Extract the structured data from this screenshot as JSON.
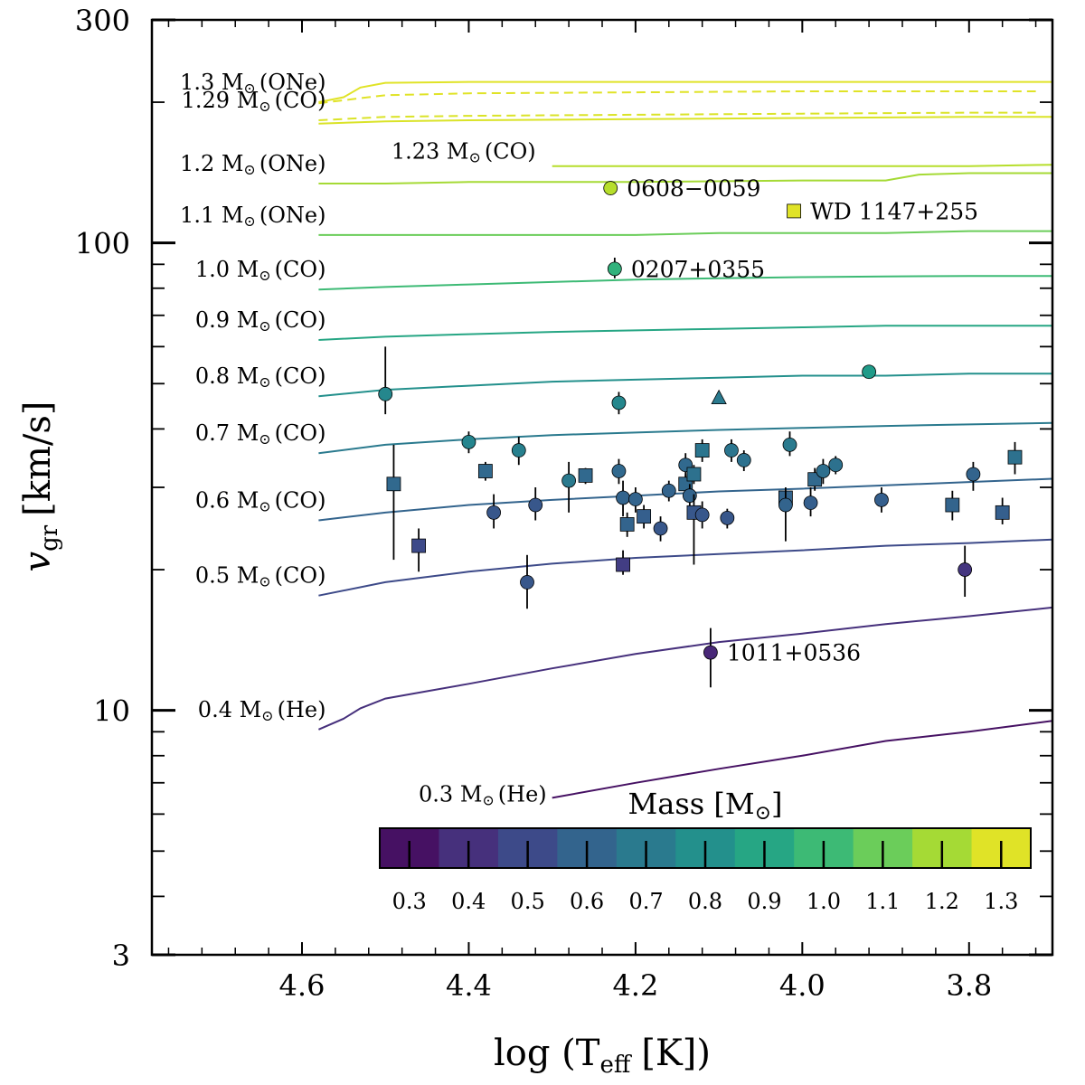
{
  "chart_data": {
    "type": "scatter",
    "xlabel": "log (T",
    "xlabel_sub": "eff",
    "xlabel_unit": "[K])",
    "ylabel": "v",
    "ylabel_sub": "gr",
    "ylabel_unit": "[km/s]",
    "xlim": [
      4.78,
      3.7
    ],
    "ylim": [
      3,
      300
    ],
    "yscale": "log",
    "x_reversed": true,
    "xticks": [
      4.6,
      4.4,
      4.2,
      4.0,
      3.8
    ],
    "xtick_labels": [
      "4.6",
      "4.4",
      "4.2",
      "4.0",
      "3.8"
    ],
    "yticks": [
      3,
      10,
      100,
      300
    ],
    "ytick_labels": [
      "3",
      "10",
      "100",
      "300"
    ],
    "grid": false,
    "colorbar": {
      "label": "Mass",
      "label_unit": "[M",
      "label_close": "]",
      "range": [
        0.25,
        1.35
      ],
      "ticks": [
        0.3,
        0.4,
        0.5,
        0.6,
        0.7,
        0.8,
        0.9,
        1.0,
        1.1,
        1.2,
        1.3
      ],
      "tick_labels": [
        "0.3",
        "0.4",
        "0.5",
        "0.6",
        "0.7",
        "0.8",
        "0.9",
        "1.0",
        "1.1",
        "1.2",
        "1.3"
      ]
    },
    "tracks": [
      {
        "mass": 1.3,
        "label": "1.3 M",
        "core": "(ONe)",
        "style": "solid",
        "x": [
          4.58,
          4.55,
          4.53,
          4.5,
          4.4,
          4.2,
          4.0,
          3.8,
          3.7
        ],
        "y": [
          200,
          205,
          215,
          220,
          221,
          221,
          221,
          221,
          221
        ]
      },
      {
        "mass": 1.3,
        "label": "",
        "core": "",
        "style": "dashed",
        "x": [
          4.58,
          4.53,
          4.5,
          4.4,
          4.2,
          4.0,
          3.8,
          3.72
        ],
        "y": [
          199,
          204,
          207,
          209,
          210,
          211,
          211,
          211
        ]
      },
      {
        "mass": 1.29,
        "label": "1.29 M",
        "core": "(CO)",
        "style": "dashed",
        "x": [
          4.58,
          4.5,
          4.4,
          4.2,
          4.0,
          3.8,
          3.72
        ],
        "y": [
          183,
          186,
          187,
          188,
          189,
          190,
          190
        ]
      },
      {
        "mass": 1.29,
        "label": "",
        "core": "",
        "style": "solid",
        "x": [
          4.58,
          4.5,
          4.4,
          4.2,
          4.0,
          3.8,
          3.7
        ],
        "y": [
          180,
          182,
          183,
          184,
          185,
          186,
          186
        ]
      },
      {
        "mass": 1.23,
        "label": "1.23 M",
        "core": "(CO)",
        "style": "solid",
        "x": [
          4.3,
          4.2,
          4.0,
          3.8,
          3.7
        ],
        "y": [
          146,
          146,
          146,
          146,
          147
        ]
      },
      {
        "mass": 1.2,
        "label": "1.2 M",
        "core": "(ONe)",
        "style": "solid",
        "x": [
          4.58,
          4.5,
          4.4,
          4.2,
          4.0,
          3.9,
          3.86,
          3.8,
          3.7
        ],
        "y": [
          134,
          134,
          135,
          135,
          136,
          136,
          140,
          141,
          141
        ]
      },
      {
        "mass": 1.1,
        "label": "1.1 M",
        "core": "(ONe)",
        "style": "solid",
        "x": [
          4.58,
          4.4,
          4.3,
          4.2,
          4.1,
          4.0,
          3.9,
          3.8,
          3.7
        ],
        "y": [
          104,
          104,
          104,
          104,
          105,
          105,
          105,
          106,
          106
        ]
      },
      {
        "mass": 1.0,
        "label": "1.0 M",
        "core": "(CO)",
        "style": "solid",
        "x": [
          4.58,
          4.5,
          4.4,
          4.3,
          4.2,
          4.1,
          4.0,
          3.9,
          3.8,
          3.7
        ],
        "y": [
          79.5,
          80.5,
          81.5,
          82.5,
          83.5,
          84,
          84.5,
          84.8,
          85,
          85
        ]
      },
      {
        "mass": 0.9,
        "label": "0.9 M",
        "core": "(CO)",
        "style": "solid",
        "x": [
          4.58,
          4.5,
          4.4,
          4.3,
          4.2,
          4.1,
          4.0,
          3.9,
          3.8,
          3.7
        ],
        "y": [
          62,
          63,
          63.8,
          64.5,
          65,
          65.5,
          66,
          66.5,
          66.5,
          66.5
        ]
      },
      {
        "mass": 0.8,
        "label": "0.8 M",
        "core": "(CO)",
        "style": "solid",
        "x": [
          4.58,
          4.5,
          4.4,
          4.3,
          4.2,
          4.1,
          4.0,
          3.9,
          3.8,
          3.7
        ],
        "y": [
          47,
          48.5,
          49.5,
          50.5,
          51,
          51.5,
          52,
          52,
          52.5,
          52.5
        ]
      },
      {
        "mass": 0.7,
        "label": "0.7 M",
        "core": "(CO)",
        "style": "solid",
        "x": [
          4.58,
          4.5,
          4.4,
          4.3,
          4.2,
          4.1,
          4.0,
          3.9,
          3.8,
          3.7
        ],
        "y": [
          35.5,
          37,
          38,
          38.8,
          39.3,
          39.8,
          40.2,
          40.6,
          40.9,
          41.2
        ]
      },
      {
        "mass": 0.6,
        "label": "0.6 M",
        "core": "(CO)",
        "style": "solid",
        "x": [
          4.58,
          4.5,
          4.4,
          4.3,
          4.2,
          4.1,
          4.0,
          3.9,
          3.8,
          3.7
        ],
        "y": [
          25.5,
          26.5,
          27.5,
          28.2,
          28.8,
          29.4,
          29.8,
          30.3,
          30.8,
          31.3
        ]
      },
      {
        "mass": 0.5,
        "label": "0.5 M",
        "core": "(CO)",
        "style": "solid",
        "x": [
          4.58,
          4.5,
          4.4,
          4.3,
          4.2,
          4.1,
          4.0,
          3.9,
          3.8,
          3.7
        ],
        "y": [
          17.6,
          18.8,
          19.8,
          20.6,
          21.2,
          21.6,
          22,
          22.5,
          22.8,
          23.2
        ]
      },
      {
        "mass": 0.4,
        "label": "0.4 M",
        "core": "(He)",
        "style": "solid",
        "x": [
          4.58,
          4.55,
          4.53,
          4.5,
          4.4,
          4.3,
          4.2,
          4.1,
          4.0,
          3.9,
          3.8,
          3.7
        ],
        "y": [
          9.1,
          9.6,
          10.1,
          10.6,
          11.4,
          12.3,
          13.2,
          14.0,
          14.6,
          15.3,
          15.9,
          16.6
        ]
      },
      {
        "mass": 0.3,
        "label": "0.3 M",
        "core": "(He)",
        "style": "solid",
        "x": [
          4.3,
          4.2,
          4.1,
          4.0,
          3.9,
          3.8,
          3.7
        ],
        "y": [
          6.5,
          7.0,
          7.5,
          8.0,
          8.6,
          9.0,
          9.5
        ]
      }
    ],
    "points": [
      {
        "x": 4.5,
        "y": 47.5,
        "err": [
          43,
          60
        ],
        "mass": 0.76,
        "marker": "circle"
      },
      {
        "x": 4.49,
        "y": 30.5,
        "err": [
          21,
          37
        ],
        "mass": 0.62,
        "marker": "square"
      },
      {
        "x": 4.46,
        "y": 22.5,
        "err": [
          19.8,
          24.5
        ],
        "mass": 0.5,
        "marker": "square"
      },
      {
        "x": 4.4,
        "y": 37.5,
        "err": [
          35.5,
          39.5
        ],
        "mass": 0.75,
        "marker": "circle"
      },
      {
        "x": 4.38,
        "y": 32.5,
        "err": [
          31,
          34
        ],
        "mass": 0.62,
        "marker": "square"
      },
      {
        "x": 4.37,
        "y": 26.5,
        "err": [
          24.5,
          29
        ],
        "mass": 0.55,
        "marker": "circle"
      },
      {
        "x": 4.34,
        "y": 36.0,
        "err": [
          33.5,
          38.5
        ],
        "mass": 0.73,
        "marker": "circle"
      },
      {
        "x": 4.33,
        "y": 18.8,
        "err": [
          16.5,
          21.5
        ],
        "mass": 0.55,
        "marker": "circle"
      },
      {
        "x": 4.32,
        "y": 27.5,
        "err": [
          25.5,
          30
        ],
        "mass": 0.55,
        "marker": "circle"
      },
      {
        "x": 4.28,
        "y": 31.0,
        "err": [
          26.5,
          34
        ],
        "mass": 0.7,
        "marker": "circle"
      },
      {
        "x": 4.26,
        "y": 31.8,
        "err": [
          30.5,
          33
        ],
        "mass": 0.62,
        "marker": "square"
      },
      {
        "x": 4.23,
        "y": 131.0,
        "err": null,
        "mass": 1.23,
        "marker": "circle",
        "label": "0608−0059"
      },
      {
        "x": 4.225,
        "y": 88.0,
        "err": [
          84,
          93
        ],
        "mass": 0.96,
        "marker": "circle",
        "label": "0207+0355"
      },
      {
        "x": 4.22,
        "y": 45.5,
        "err": [
          43,
          48
        ],
        "mass": 0.76,
        "marker": "circle"
      },
      {
        "x": 4.22,
        "y": 32.5,
        "err": [
          30.5,
          34.5
        ],
        "mass": 0.62,
        "marker": "circle"
      },
      {
        "x": 4.215,
        "y": 28.5,
        "err": [
          26,
          31
        ],
        "mass": 0.6,
        "marker": "circle"
      },
      {
        "x": 4.215,
        "y": 20.5,
        "err": [
          19.5,
          22
        ],
        "mass": 0.45,
        "marker": "square"
      },
      {
        "x": 4.21,
        "y": 25.0,
        "err": [
          23.5,
          26.5
        ],
        "mass": 0.6,
        "marker": "square"
      },
      {
        "x": 4.2,
        "y": 28.3,
        "err": [
          26.5,
          30
        ],
        "mass": 0.6,
        "marker": "circle"
      },
      {
        "x": 4.19,
        "y": 26.0,
        "err": [
          24.5,
          27.5
        ],
        "mass": 0.58,
        "marker": "square"
      },
      {
        "x": 4.17,
        "y": 24.5,
        "err": [
          23,
          26
        ],
        "mass": 0.55,
        "marker": "circle"
      },
      {
        "x": 4.16,
        "y": 29.5,
        "err": [
          28,
          31
        ],
        "mass": 0.6,
        "marker": "circle"
      },
      {
        "x": 4.14,
        "y": 33.5,
        "err": [
          31.5,
          35.5
        ],
        "mass": 0.62,
        "marker": "circle"
      },
      {
        "x": 4.14,
        "y": 30.5,
        "err": [
          28.5,
          32
        ],
        "mass": 0.62,
        "marker": "square"
      },
      {
        "x": 4.13,
        "y": 32.0,
        "err": [
          30.5,
          33.5
        ],
        "mass": 0.66,
        "marker": "square"
      },
      {
        "x": 4.135,
        "y": 28.8,
        "err": [
          27,
          30.5
        ],
        "mass": 0.6,
        "marker": "circle"
      },
      {
        "x": 4.13,
        "y": 26.5,
        "err": [
          20.5,
          29
        ],
        "mass": 0.55,
        "marker": "square"
      },
      {
        "x": 4.12,
        "y": 36.0,
        "err": [
          34,
          38
        ],
        "mass": 0.68,
        "marker": "square"
      },
      {
        "x": 4.12,
        "y": 26.2,
        "err": [
          24.5,
          28
        ],
        "mass": 0.55,
        "marker": "circle"
      },
      {
        "x": 4.11,
        "y": 13.3,
        "err": [
          11.2,
          15
        ],
        "mass": 0.37,
        "marker": "circle",
        "label": "1011+0536"
      },
      {
        "x": 4.1,
        "y": 46.5,
        "err": null,
        "mass": 0.7,
        "marker": "triangle"
      },
      {
        "x": 4.09,
        "y": 25.8,
        "err": [
          24.5,
          27
        ],
        "mass": 0.55,
        "marker": "circle"
      },
      {
        "x": 4.085,
        "y": 36.0,
        "err": [
          34,
          38
        ],
        "mass": 0.68,
        "marker": "circle"
      },
      {
        "x": 4.07,
        "y": 34.3,
        "err": [
          32.5,
          36
        ],
        "mass": 0.66,
        "marker": "circle"
      },
      {
        "x": 4.02,
        "y": 28.5,
        "err": [
          26.5,
          30
        ],
        "mass": 0.6,
        "marker": "square"
      },
      {
        "x": 4.02,
        "y": 27.5,
        "err": [
          23,
          29.5
        ],
        "mass": 0.6,
        "marker": "circle"
      },
      {
        "x": 4.015,
        "y": 37.0,
        "err": [
          35,
          39.5
        ],
        "mass": 0.7,
        "marker": "circle"
      },
      {
        "x": 4.01,
        "y": 117.0,
        "err": [
          114,
          120
        ],
        "mass": 1.3,
        "marker": "square",
        "label": "WD 1147+255"
      },
      {
        "x": 3.99,
        "y": 27.8,
        "err": [
          26,
          30
        ],
        "mass": 0.58,
        "marker": "circle"
      },
      {
        "x": 3.985,
        "y": 31.2,
        "err": [
          29.5,
          33
        ],
        "mass": 0.62,
        "marker": "square"
      },
      {
        "x": 3.975,
        "y": 32.5,
        "err": [
          30.5,
          34.5
        ],
        "mass": 0.65,
        "marker": "circle"
      },
      {
        "x": 3.96,
        "y": 33.5,
        "err": [
          32,
          35
        ],
        "mass": 0.66,
        "marker": "circle"
      },
      {
        "x": 3.92,
        "y": 53.0,
        "err": null,
        "mass": 0.85,
        "marker": "circle"
      },
      {
        "x": 3.905,
        "y": 28.2,
        "err": [
          26.5,
          30
        ],
        "mass": 0.58,
        "marker": "circle"
      },
      {
        "x": 3.82,
        "y": 27.5,
        "err": [
          25.5,
          29.5
        ],
        "mass": 0.6,
        "marker": "square"
      },
      {
        "x": 3.805,
        "y": 20.0,
        "err": [
          17.5,
          22.5
        ],
        "mass": 0.42,
        "marker": "circle"
      },
      {
        "x": 3.795,
        "y": 32.0,
        "err": [
          29.5,
          34
        ],
        "mass": 0.6,
        "marker": "circle"
      },
      {
        "x": 3.76,
        "y": 26.5,
        "err": [
          25,
          28.5
        ],
        "mass": 0.58,
        "marker": "square"
      },
      {
        "x": 3.745,
        "y": 34.8,
        "err": [
          32,
          37.5
        ],
        "mass": 0.66,
        "marker": "square"
      }
    ]
  }
}
